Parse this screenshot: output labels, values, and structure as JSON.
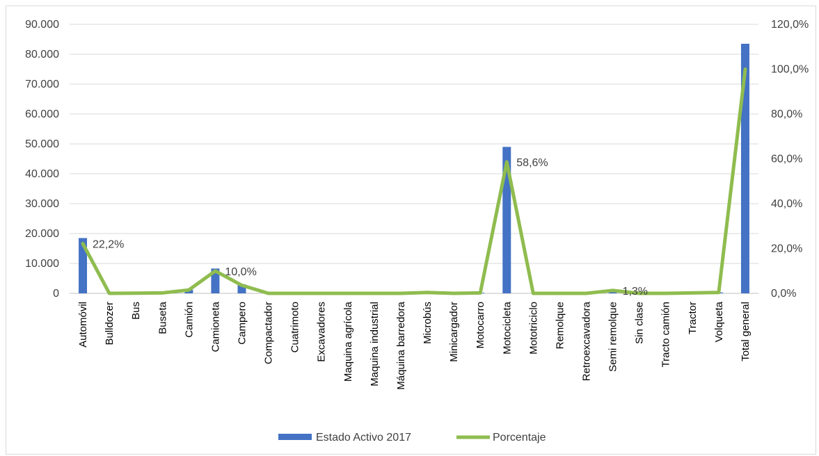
{
  "chart_data": {
    "type": "bar",
    "categories": [
      "Automóvil",
      "Bulldozer",
      "Bus",
      "Buseta",
      "Camión",
      "Camioneta",
      "Campero",
      "Compactador",
      "Cuatrimoto",
      "Excavadores",
      "Maquina agrícola",
      "Maquina industrial",
      "Máquina barredora",
      "Microbús",
      "Minicargador",
      "Motocarro",
      "Motocicleta",
      "Mototriciclo",
      "Remolque",
      "Retroexcavadora",
      "Semi remolque",
      "Sin clase",
      "Tracto camión",
      "Tractor",
      "Volqueta",
      "Total general"
    ],
    "series": [
      {
        "name": "Estado Activo 2017",
        "type": "bar",
        "axis": "left",
        "color": "#4472c4",
        "values": [
          18500,
          10,
          60,
          200,
          1200,
          8300,
          3000,
          10,
          10,
          10,
          10,
          10,
          10,
          300,
          10,
          200,
          49000,
          10,
          10,
          10,
          800,
          10,
          10,
          200,
          300,
          83500
        ]
      },
      {
        "name": "Porcentaje",
        "type": "line",
        "axis": "right",
        "color": "#8fbc4f",
        "values": [
          22.2,
          0.0,
          0.1,
          0.2,
          1.5,
          10.0,
          3.6,
          0.0,
          0.0,
          0.0,
          0.0,
          0.0,
          0.0,
          0.4,
          0.0,
          0.2,
          58.6,
          0.0,
          0.0,
          0.0,
          1.3,
          0.0,
          0.0,
          0.2,
          0.4,
          100.0
        ]
      }
    ],
    "y_left": {
      "min": 0,
      "max": 90000,
      "ticks": [
        "0",
        "10.000",
        "20.000",
        "30.000",
        "40.000",
        "50.000",
        "60.000",
        "70.000",
        "80.000",
        "90.000"
      ]
    },
    "y_right": {
      "min": 0,
      "max": 120,
      "ticks": [
        "0,0%",
        "20,0%",
        "40,0%",
        "60,0%",
        "80,0%",
        "100,0%",
        "120,0%"
      ]
    },
    "data_labels": [
      {
        "index": 0,
        "text": "22,2%"
      },
      {
        "index": 5,
        "text": "10,0%"
      },
      {
        "index": 16,
        "text": "58,6%"
      },
      {
        "index": 20,
        "text": "1,3%"
      }
    ],
    "grid": true,
    "legend_position": "bottom"
  }
}
